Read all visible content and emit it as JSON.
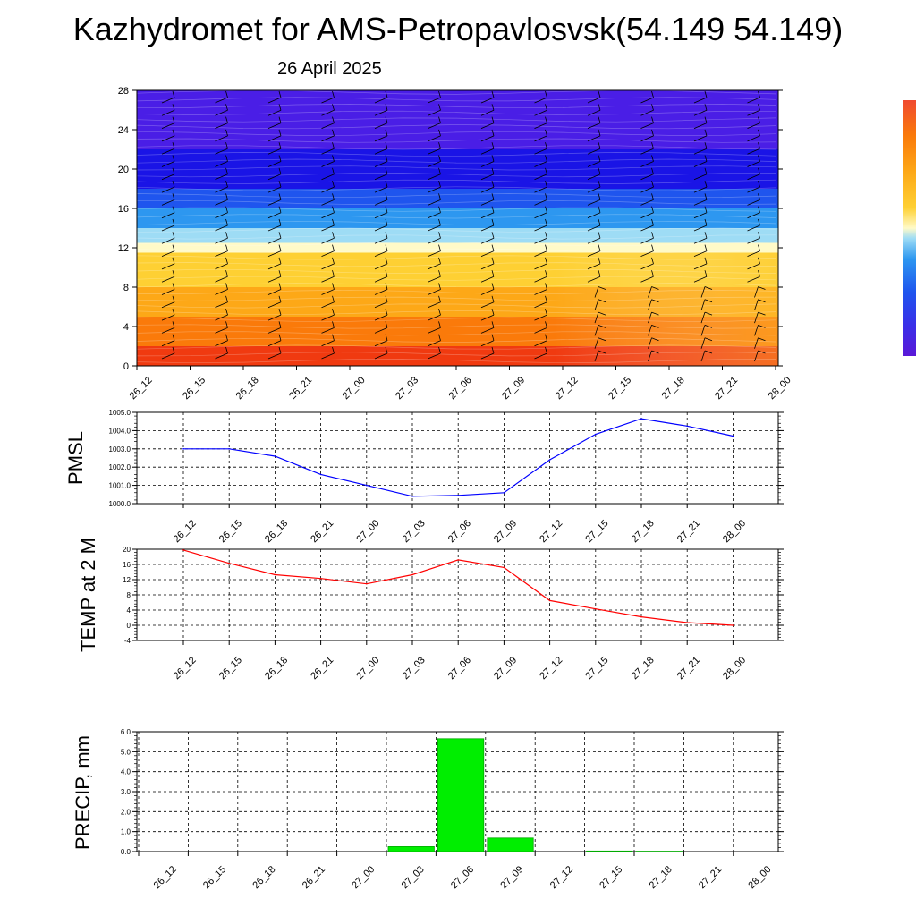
{
  "header": {
    "title": "Kazhydromet for AMS-Petropavlosvsk(54.149 54.149)",
    "subtitle": "26 April 2025"
  },
  "colors": {
    "pressure_line": "#0000ff",
    "temp_line": "#ff0000",
    "precip_bar": "#00ee00",
    "precip_bar_edge": "#00aa00",
    "grid": "#000000"
  },
  "chart_data": [
    {
      "type": "heatmap",
      "id": "cross_section",
      "x": [
        "26_12",
        "26_15",
        "26_18",
        "26_21",
        "27_00",
        "27_03",
        "27_06",
        "27_09",
        "27_12",
        "27_15",
        "27_18",
        "27_21",
        "28_00"
      ],
      "ylim": [
        0,
        28
      ],
      "yticks": [
        0,
        4,
        8,
        12,
        16,
        20,
        24,
        28
      ],
      "color_bands": [
        {
          "from": 0,
          "to": 2,
          "color": "#f03a10"
        },
        {
          "from": 2,
          "to": 5,
          "color": "#fa7a0a"
        },
        {
          "from": 5,
          "to": 8,
          "color": "#fda817"
        },
        {
          "from": 8,
          "to": 11.5,
          "color": "#fed033"
        },
        {
          "from": 11.5,
          "to": 12.5,
          "color": "#fffac8"
        },
        {
          "from": 12.5,
          "to": 14,
          "color": "#9edcf5"
        },
        {
          "from": 14,
          "to": 16,
          "color": "#2d97f0"
        },
        {
          "from": 16,
          "to": 18,
          "color": "#1f55ee"
        },
        {
          "from": 18,
          "to": 22,
          "color": "#1a14e6"
        },
        {
          "from": 22,
          "to": 28,
          "color": "#4a1ee6"
        }
      ],
      "wind_barbs": "black barbs at every column and level",
      "colorbar": "vertical, right side, unlabeled"
    },
    {
      "type": "line",
      "id": "pmsl",
      "ylabel": "PMSL",
      "x": [
        "26_12",
        "26_15",
        "26_18",
        "26_21",
        "27_00",
        "27_03",
        "27_06",
        "27_09",
        "27_12",
        "27_15",
        "27_18",
        "27_21",
        "28_00"
      ],
      "series": [
        {
          "values": [
            1003.0,
            1003.0,
            1002.6,
            1001.6,
            1001.0,
            1000.4,
            1000.45,
            1000.6,
            1002.4,
            1003.8,
            1004.65,
            1004.25,
            1003.7
          ]
        }
      ],
      "ylim": [
        1000.0,
        1005.0
      ],
      "ytick_labels": [
        "1000.0",
        "1001.0",
        "1002.0",
        "1003.0",
        "1004.0",
        "1005.0"
      ],
      "grid": true
    },
    {
      "type": "line",
      "id": "temp",
      "ylabel": "TEMP at 2 M",
      "x": [
        "26_12",
        "26_15",
        "26_18",
        "26_21",
        "27_00",
        "27_03",
        "27_06",
        "27_09",
        "27_12",
        "27_15",
        "27_18",
        "27_21",
        "28_00"
      ],
      "series": [
        {
          "values": [
            19.8,
            16.3,
            13.3,
            12.3,
            10.9,
            13.3,
            17.2,
            15.2,
            6.5,
            4.3,
            2.2,
            0.7,
            0.0
          ]
        }
      ],
      "ylim": [
        -4,
        20
      ],
      "ytick_labels": [
        "-4",
        "0",
        "4",
        "8",
        "12",
        "16",
        "20"
      ],
      "grid": true
    },
    {
      "type": "bar",
      "id": "precip",
      "ylabel": "PRECIP, mm",
      "categories": [
        "26_12",
        "26_15",
        "26_18",
        "26_21",
        "27_00",
        "27_03",
        "27_06",
        "27_09",
        "27_12",
        "27_15",
        "27_18",
        "27_21",
        "28_00"
      ],
      "bars": [
        {
          "from": "27_03",
          "to": "27_06",
          "value": 0.25
        },
        {
          "from": "27_06",
          "to": "27_09",
          "value": 5.65
        },
        {
          "from": "27_09",
          "to": "27_12",
          "value": 0.68
        },
        {
          "from": "27_15",
          "to": "27_18",
          "value": 0.03
        },
        {
          "from": "27_18",
          "to": "27_21",
          "value": 0.02
        }
      ],
      "ylim": [
        0.0,
        6.0
      ],
      "ytick_labels": [
        "0.0",
        "1.0",
        "2.0",
        "3.0",
        "4.0",
        "5.0",
        "6.0"
      ],
      "grid": true
    }
  ]
}
